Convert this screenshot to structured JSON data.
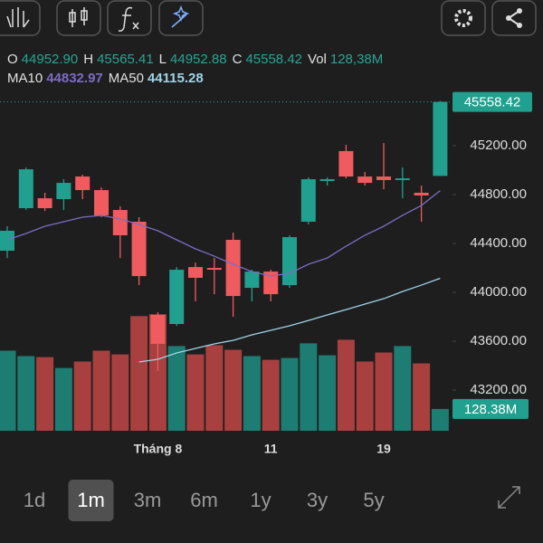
{
  "chart_data": {
    "type": "candlestick",
    "header": [
      {
        "key": "O",
        "text": "44952.90"
      },
      {
        "key": "H",
        "text": "45565.41"
      },
      {
        "key": "L",
        "text": "44952.88"
      },
      {
        "key": "C",
        "text": "45558.42"
      },
      {
        "key": "Vol",
        "text": "128,38M"
      }
    ],
    "categories": [
      null,
      null,
      null,
      null,
      null,
      null,
      null,
      null,
      "Tháng 8",
      null,
      null,
      null,
      null,
      null,
      "11",
      null,
      null,
      null,
      null,
      null,
      "19",
      null,
      null,
      null
    ],
    "open": [
      44341,
      44689,
      44770,
      44763,
      44948,
      44837,
      44674,
      44578,
      43815,
      43741,
      44207,
      44200,
      44430,
      44037,
      44170,
      44059,
      44578,
      44911,
      45156,
      44948,
      44948,
      44919,
      44815,
      44952.9
    ],
    "high": [
      44541,
      45022,
      44815,
      44926,
      44963,
      44859,
      44704,
      44615,
      43837,
      44207,
      44244,
      44281,
      44489,
      44185,
      44185,
      44467,
      44941,
      44941,
      45207,
      44985,
      45222,
      45022,
      44874,
      45565.41
    ],
    "low": [
      44281,
      44674,
      44667,
      44674,
      44763,
      44615,
      44281,
      44059,
      43356,
      43726,
      43926,
      43985,
      43800,
      43926,
      43926,
      44037,
      44556,
      44874,
      44933,
      44874,
      44844,
      44770,
      44578,
      44952.88
    ],
    "close": [
      44504,
      45007,
      44689,
      44896,
      44837,
      44630,
      44467,
      44133,
      43578,
      44185,
      44119,
      44185,
      43970,
      44170,
      43985,
      44452,
      44926,
      44926,
      44948,
      44896,
      44919,
      44933,
      44793,
      45558.42
    ],
    "volume": [
      471,
      439,
      433,
      369,
      407,
      471,
      449,
      674,
      685,
      498,
      449,
      503,
      476,
      439,
      417,
      428,
      514,
      444,
      535,
      407,
      460,
      498,
      396,
      128.38
    ],
    "last_label": "45558.42",
    "volume_label": "128.38M",
    "up_color": "#22a08f",
    "down_color": "#ef5b5e",
    "volume_up_color": "#1d7d72",
    "volume_down_color": "#a8403f",
    "ma": [
      {
        "name": "MA10",
        "color": "#7d6bc4",
        "last_label": "44832.97",
        "values": [
          44430,
          44482,
          44541,
          44578,
          44615,
          44630,
          44600,
          44556,
          44504,
          44430,
          44356,
          44296,
          44230,
          44170,
          44133,
          44156,
          44230,
          44281,
          44378,
          44467,
          44541,
          44630,
          44711,
          44832.97
        ]
      },
      {
        "name": "MA50",
        "color": "#9fd3e8",
        "last_label": "44115.28",
        "values": [
          null,
          null,
          null,
          null,
          null,
          null,
          null,
          43430,
          43452,
          43504,
          43541,
          43578,
          43607,
          43652,
          43689,
          43726,
          43770,
          43815,
          43859,
          43904,
          43948,
          44007,
          44059,
          44115.28
        ]
      }
    ],
    "ylim": [
      42867,
      45652
    ],
    "yticks": [
      {
        "value": 43200,
        "label": "43200.00"
      },
      {
        "value": 43600,
        "label": "43600.00"
      },
      {
        "value": 44000,
        "label": "44000.00"
      },
      {
        "value": 44400,
        "label": "44400.00"
      },
      {
        "value": 44800,
        "label": "44800.00"
      },
      {
        "value": 45200,
        "label": "45200.00"
      }
    ],
    "vlim": [
      0,
      2000
    ],
    "timeframes": [
      "1d",
      "1m",
      "3m",
      "6m",
      "1y",
      "3y",
      "5y"
    ],
    "selected_timeframe": 1
  }
}
